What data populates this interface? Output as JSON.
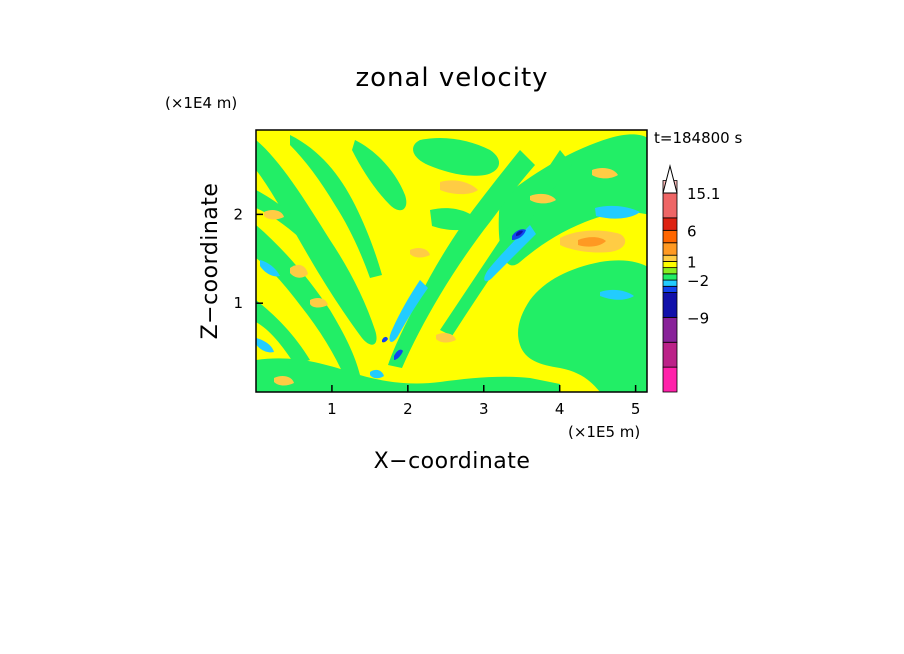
{
  "chart_data": {
    "type": "heatmap",
    "title": "zonal velocity",
    "xlabel": "X−coordinate",
    "ylabel": "Z−coordinate",
    "x_scale_label": "(×1E5 m)",
    "y_scale_label": "(×1E4 m)",
    "time_label": "t=184800 s",
    "xlim": [
      0,
      5.15
    ],
    "ylim": [
      0,
      2.95
    ],
    "x_ticks": [
      {
        "value": 1,
        "label": "1"
      },
      {
        "value": 2,
        "label": "2"
      },
      {
        "value": 3,
        "label": "3"
      },
      {
        "value": 4,
        "label": "4"
      },
      {
        "value": 5,
        "label": "5"
      }
    ],
    "y_ticks": [
      {
        "value": 1,
        "label": "1"
      },
      {
        "value": 2,
        "label": "2"
      }
    ],
    "colorbar": {
      "colors": [
        "#ff22aa",
        "#bb2288",
        "#882299",
        "#1111aa",
        "#1144ee",
        "#22ccff",
        "#22ee66",
        "#88ee22",
        "#ffff00",
        "#ffcc44",
        "#ff9922",
        "#ff6600",
        "#dd2211",
        "#ee6666",
        "#ffbbbb",
        "#ffffff"
      ],
      "tick_labels": [
        {
          "label": "15.1",
          "level": 15.1
        },
        {
          "label": "6",
          "level": 6
        },
        {
          "label": "1",
          "level": 1
        },
        {
          "label": "−2",
          "level": -2
        },
        {
          "label": "−9",
          "level": -9
        }
      ]
    },
    "field_description_levels": {
      "background": 0.3,
      "positive_band": 3,
      "negative_band": -1.5,
      "strong_negative": -6
    }
  }
}
